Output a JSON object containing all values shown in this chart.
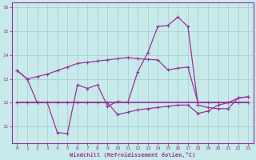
{
  "xlabel": "Windchill (Refroidissement éolien,°C)",
  "xlim": [
    -0.5,
    23.5
  ],
  "ylim": [
    10.3,
    16.2
  ],
  "yticks": [
    11,
    12,
    13,
    14,
    15,
    16
  ],
  "xticks": [
    0,
    1,
    2,
    3,
    4,
    5,
    6,
    7,
    8,
    9,
    10,
    11,
    12,
    13,
    14,
    15,
    16,
    17,
    18,
    19,
    20,
    21,
    22,
    23
  ],
  "background_color": "#c8eaea",
  "grid_color": "#a0cccc",
  "line_color": "#993399",
  "line1_x": [
    0,
    1,
    2,
    3,
    4,
    5,
    6,
    7,
    8,
    9,
    10,
    11,
    12,
    13,
    14,
    15,
    16,
    17,
    18,
    19,
    20,
    21,
    22,
    23
  ],
  "line1_y": [
    13.35,
    13.0,
    13.1,
    13.2,
    13.35,
    13.5,
    13.65,
    13.7,
    13.75,
    13.8,
    13.85,
    13.9,
    13.85,
    13.82,
    13.8,
    13.38,
    13.45,
    13.5,
    12.0,
    12.0,
    12.0,
    12.0,
    12.0,
    12.0
  ],
  "line2_x": [
    0,
    1,
    2,
    3,
    4,
    5,
    6,
    7,
    8,
    9,
    10,
    11,
    12,
    13,
    14,
    15,
    16,
    17,
    18,
    19,
    20,
    21,
    22,
    23
  ],
  "line2_y": [
    13.35,
    13.0,
    12.0,
    12.0,
    10.75,
    10.7,
    12.75,
    12.6,
    12.75,
    11.85,
    12.05,
    12.0,
    13.3,
    14.1,
    15.2,
    15.25,
    15.6,
    15.2,
    11.9,
    11.8,
    11.75,
    11.75,
    12.2,
    12.25
  ],
  "line3_x": [
    0,
    23
  ],
  "line3_y": [
    12.0,
    12.0
  ],
  "line4_x": [
    0,
    1,
    2,
    3,
    4,
    5,
    6,
    7,
    8,
    9,
    10,
    11,
    12,
    13,
    14,
    15,
    16,
    17,
    18,
    19,
    20,
    21,
    22,
    23
  ],
  "line4_y": [
    12.0,
    12.0,
    12.0,
    12.0,
    12.0,
    12.0,
    12.0,
    12.0,
    12.0,
    12.0,
    11.5,
    11.6,
    11.7,
    11.75,
    11.8,
    11.85,
    11.9,
    11.9,
    11.55,
    11.65,
    11.9,
    12.0,
    12.2,
    12.25
  ]
}
